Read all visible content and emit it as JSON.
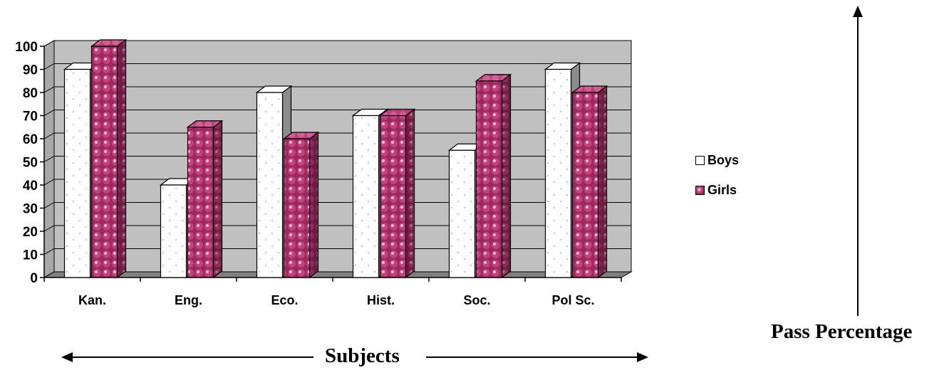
{
  "chart_data": {
    "type": "bar",
    "categories": [
      "Kan.",
      "Eng.",
      "Eco.",
      "Hist.",
      "Soc.",
      "Pol Sc."
    ],
    "series": [
      {
        "name": "Boys",
        "values": [
          90,
          40,
          80,
          70,
          55,
          90
        ]
      },
      {
        "name": "Girls",
        "values": [
          100,
          65,
          60,
          70,
          85,
          80
        ]
      }
    ],
    "ylim": [
      0,
      100
    ],
    "yticks": [
      0,
      10,
      20,
      30,
      40,
      50,
      60,
      70,
      80,
      90,
      100
    ],
    "grid": true,
    "three_d": true,
    "legend_position": "right",
    "xlabel": "Subjects",
    "ylabel": "Pass Percentage",
    "colors": {
      "Boys": "#ffffff",
      "Girls": "#b0306a",
      "plot_background": "#c0c0c0",
      "floor": "#808080"
    }
  }
}
